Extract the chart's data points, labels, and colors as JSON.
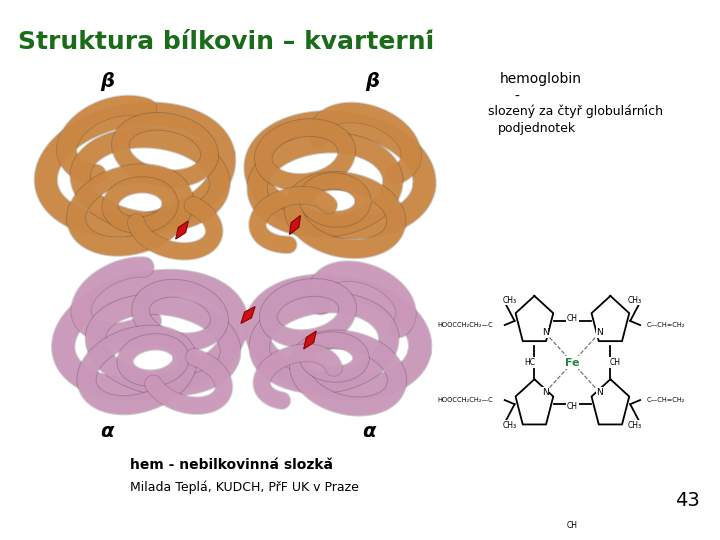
{
  "title": "Struktura bílkovin – kvarterní",
  "title_color": "#1a6b1a",
  "title_fontsize": 18,
  "background_color": "#ffffff",
  "annotation_hemoglobin_line1": "hemoglobin",
  "annotation_hemoglobin_line2": "-",
  "annotation_hemoglobin_line3": "slozený za čtyř globulárních",
  "annotation_hemoglobin_line4": "podjednotek",
  "annotation_hem": "hem - nebilkovinná slozkǎ",
  "annotation_footer": "Milada Teplá, KUDCH, PřF UK v Praze",
  "page_number": "43",
  "beta_label": "β",
  "alpha_label": "α",
  "beta_color": "#cc8844",
  "alpha_color": "#cc99bb",
  "alpha_color2": "#bb88aa",
  "red_heme_color": "#cc1111",
  "outline_color": "#333333",
  "fe_color": "#228844"
}
